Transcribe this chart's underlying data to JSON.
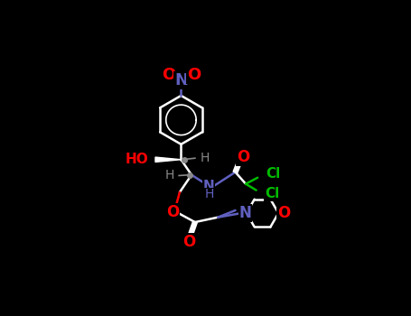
{
  "background": "#000000",
  "bond_color": "#ffffff",
  "bond_width": 1.8,
  "atom_colors": {
    "O": "#ff0000",
    "N": "#6060c0",
    "Cl": "#00bb00",
    "H": "#888888",
    "NO2_N": "#6060c0"
  },
  "figsize": [
    4.55,
    3.5
  ],
  "dpi": 100
}
